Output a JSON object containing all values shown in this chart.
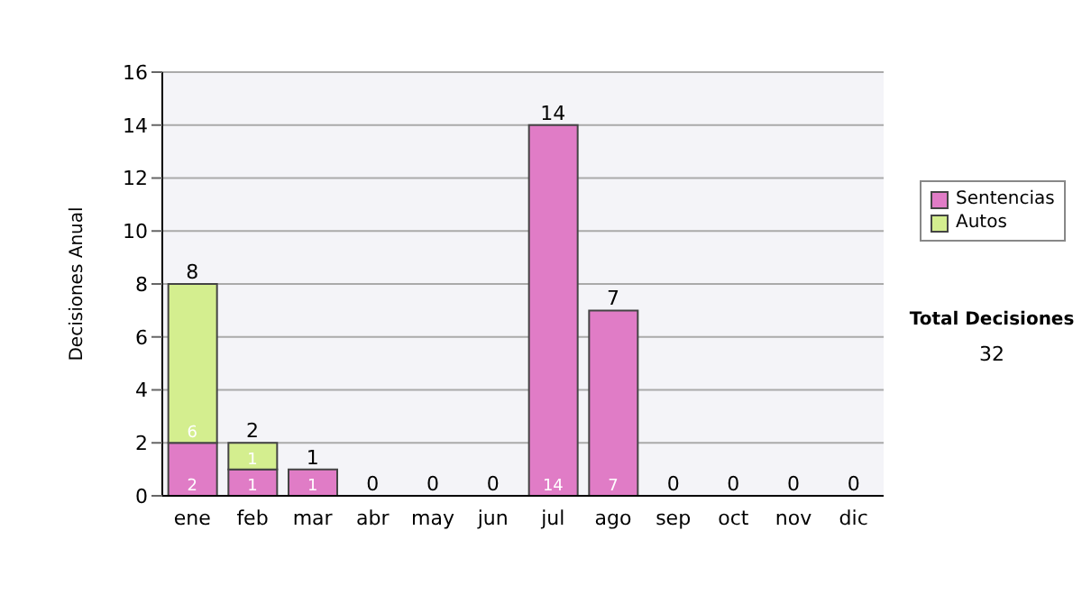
{
  "chart_data": {
    "type": "bar",
    "stacked": true,
    "ylabel": "Decisiones Anual",
    "categories": [
      "ene",
      "feb",
      "mar",
      "abr",
      "may",
      "jun",
      "jul",
      "ago",
      "sep",
      "oct",
      "nov",
      "dic"
    ],
    "series": [
      {
        "name": "Sentencias",
        "color": "#e07cc6",
        "values": [
          2,
          1,
          1,
          0,
          0,
          0,
          14,
          7,
          0,
          0,
          0,
          0
        ],
        "value_labels": [
          "2",
          "1",
          "1",
          null,
          null,
          null,
          "14",
          "7",
          null,
          null,
          null,
          null
        ]
      },
      {
        "name": "Autos",
        "color": "#d4ee8f",
        "values": [
          6,
          1,
          0,
          0,
          0,
          0,
          0,
          0,
          0,
          0,
          0,
          0
        ],
        "value_labels": [
          "6",
          "1",
          null,
          null,
          null,
          null,
          null,
          null,
          null,
          null,
          null,
          null
        ]
      }
    ],
    "totals": [
      "8",
      "2",
      "1",
      "0",
      "0",
      "0",
      "14",
      "7",
      "0",
      "0",
      "0",
      "0"
    ],
    "ylim": [
      0,
      16
    ],
    "yticks": [
      0,
      2,
      4,
      6,
      8,
      10,
      12,
      14,
      16
    ],
    "grid": "y",
    "legend": "right",
    "annotations": [
      "Total Decisiones",
      "32"
    ]
  }
}
